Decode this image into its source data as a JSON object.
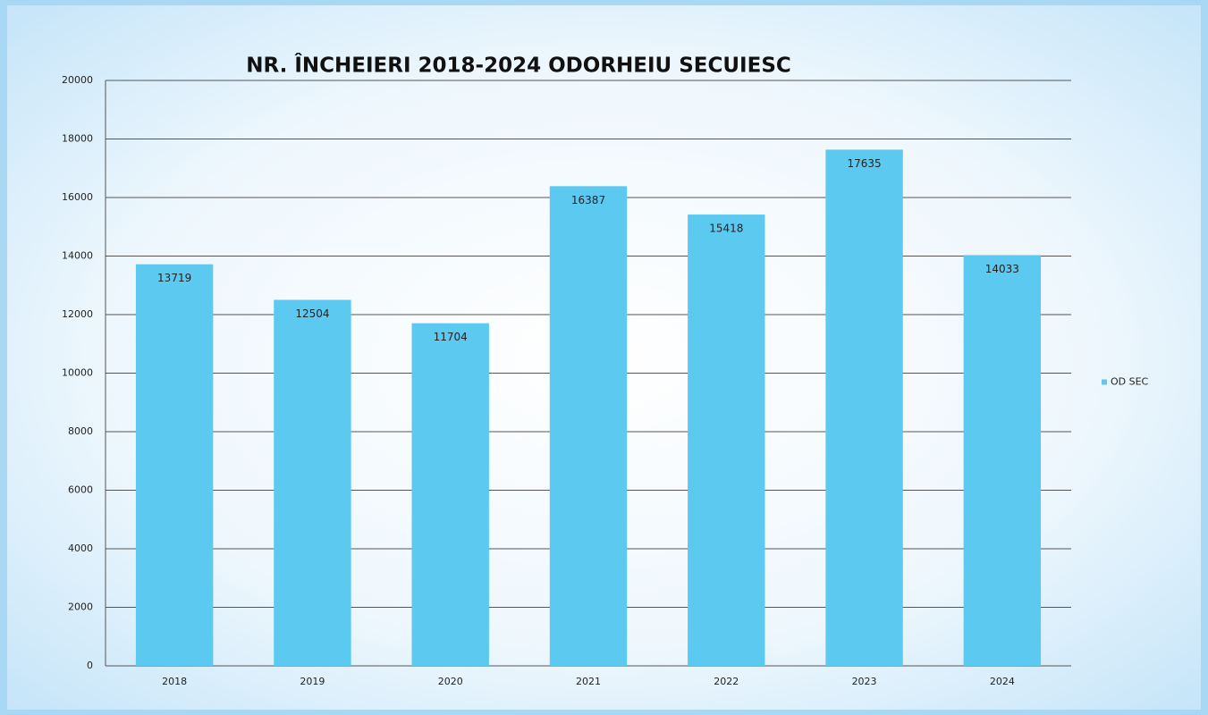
{
  "chart_data": {
    "type": "bar",
    "title": "NR. ÎNCHEIERI 2018-2024 ODORHEIU SECUIESC",
    "categories": [
      "2018",
      "2019",
      "2020",
      "2021",
      "2022",
      "2023",
      "2024"
    ],
    "series": [
      {
        "name": "OD SEC",
        "color": "#5cc9f1",
        "values": [
          13719,
          12504,
          11704,
          16387,
          15418,
          17635,
          14033
        ]
      }
    ],
    "ylim": [
      0,
      20000
    ],
    "yticks": [
      0,
      2000,
      4000,
      6000,
      8000,
      10000,
      12000,
      14000,
      16000,
      18000,
      20000
    ],
    "grid": true,
    "legend": "right"
  }
}
